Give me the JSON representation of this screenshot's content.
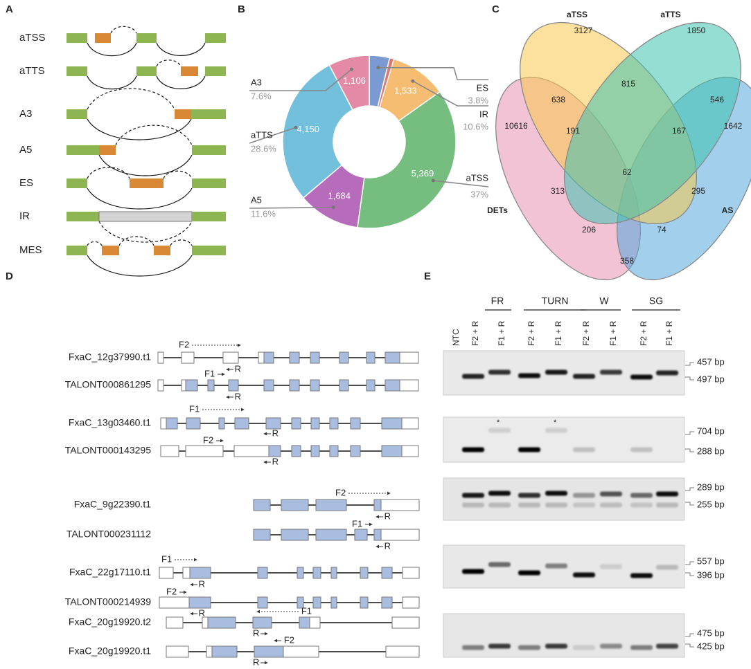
{
  "panel_labels": [
    "A",
    "B",
    "C",
    "D",
    "E"
  ],
  "panel_a": {
    "events": [
      "aTSS",
      "aTTS",
      "A3",
      "A5",
      "ES",
      "IR",
      "MES"
    ]
  },
  "chart_data": {
    "type": "pie",
    "categories": [
      "ES",
      null,
      "IR",
      "aTSS",
      "A5",
      "aTTS",
      "A3"
    ],
    "values": [
      551,
      118,
      1533,
      5369,
      1684,
      4150,
      1106
    ],
    "value_labels": [
      null,
      null,
      "1,533",
      "5,369",
      "1,684",
      "4,150",
      "1,106"
    ],
    "percent_labels": [
      "3.8%",
      null,
      "10.6%",
      "37%",
      "11.6%",
      "28.6%",
      "7.6%"
    ],
    "colors": [
      "#7c9ad2",
      "#e07575",
      "#f6bd72",
      "#76bd80",
      "#b66bbb",
      "#72c0dc",
      "#e48aa6"
    ]
  },
  "venn": {
    "sets": [
      "aTSS",
      "aTTS",
      "DETs",
      "AS"
    ],
    "regions": [
      3127,
      1850,
      815,
      638,
      546,
      10616,
      191,
      167,
      1642,
      62,
      313,
      295,
      206,
      74,
      358
    ]
  },
  "panel_d": {
    "transcripts": [
      {
        "name": "FxaC_12g37990.t1",
        "primers": [
          "F2",
          "R"
        ]
      },
      {
        "name": "TALONT000861295",
        "primers": [
          "F1",
          "R"
        ]
      },
      {
        "name": "FxaC_13g03460.t1",
        "primers": [
          "F1",
          "R"
        ]
      },
      {
        "name": "TALONT000143295",
        "primers": [
          "F2",
          "R"
        ]
      },
      {
        "name": "FxaC_9g22390.t1",
        "primers": [
          "F2",
          "R"
        ]
      },
      {
        "name": "TALONT000231112",
        "primers": [
          "F1",
          "R"
        ]
      },
      {
        "name": "FxaC_22g17110.t1",
        "primers": [
          "F1",
          "R"
        ]
      },
      {
        "name": "TALONT000214939",
        "primers": [
          "F2",
          "R"
        ]
      },
      {
        "name": "FxaC_20g19920.t2",
        "primers": [
          "F1",
          "R"
        ]
      },
      {
        "name": "FxaC_20g19920.t1",
        "primers": [
          "F2",
          "R"
        ]
      }
    ]
  },
  "panel_e": {
    "groups": [
      "FR",
      "TURN",
      "W",
      "SG"
    ],
    "lanes": [
      "NTC",
      "F2 + R",
      "F1 + R",
      "F2 + R",
      "F1 + R",
      "F2 + R",
      "F1 + R",
      "F2 + R",
      "F1 + R"
    ],
    "gels": [
      {
        "sizes": [
          "457 bp",
          "497 bp"
        ]
      },
      {
        "sizes": [
          "704 bp",
          "288 bp"
        ],
        "marks": [
          "*",
          "*"
        ]
      },
      {
        "sizes": [
          "289 bp",
          "255 bp"
        ]
      },
      {
        "sizes": [
          "557 bp",
          "396 bp"
        ]
      },
      {
        "sizes": [
          "475 bp",
          "425 bp"
        ]
      }
    ]
  }
}
